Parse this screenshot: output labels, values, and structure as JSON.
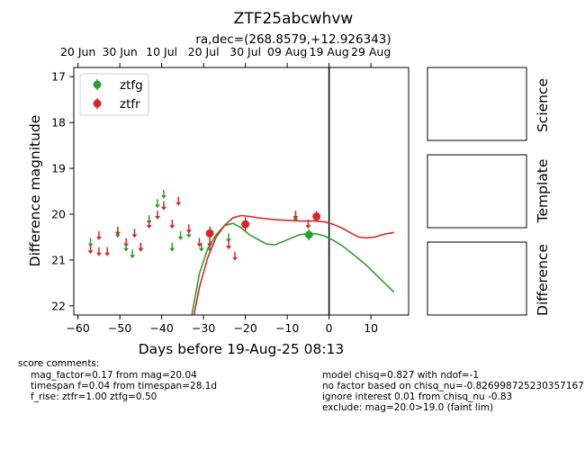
{
  "chart_data": {
    "type": "scatter",
    "title": "ZTF25abcwhvw",
    "subtitle": "ra,dec=(268.8579,+12.926343)",
    "xlabel": "Days before 19-Aug-25 08:13",
    "ylabel": "Difference magnitude",
    "xlim": [
      -61,
      19
    ],
    "ylim": [
      22.2,
      16.8
    ],
    "y_inverted": true,
    "x_ticks": [
      -60,
      -50,
      -40,
      -30,
      -20,
      -10,
      0,
      10
    ],
    "y_ticks": [
      17,
      18,
      19,
      20,
      21,
      22
    ],
    "top_ticks": [
      {
        "label": "20 Jun",
        "x": -60
      },
      {
        "label": "30 Jun",
        "x": -50
      },
      {
        "label": "10 Jul",
        "x": -40
      },
      {
        "label": "20 Jul",
        "x": -30
      },
      {
        "label": "30 Jul",
        "x": -20
      },
      {
        "label": "09 Aug",
        "x": -10
      },
      {
        "label": "19 Aug",
        "x": 0
      },
      {
        "label": "29 Aug",
        "x": 10
      }
    ],
    "legend": "top-left",
    "vline_x": 0,
    "series": [
      {
        "name": "ztfg",
        "color": "#2ca02c",
        "detections": [
          {
            "x": -4.8,
            "y": 20.45,
            "err": 0.12
          }
        ],
        "upper_limits": [
          {
            "x": -57,
            "y": 20.6
          },
          {
            "x": -50.5,
            "y": 20.4
          },
          {
            "x": -48.5,
            "y": 20.7
          },
          {
            "x": -47,
            "y": 20.85
          },
          {
            "x": -45,
            "y": 20.7
          },
          {
            "x": -43,
            "y": 20.1
          },
          {
            "x": -41,
            "y": 19.75
          },
          {
            "x": -39.5,
            "y": 19.55
          },
          {
            "x": -37.5,
            "y": 20.7
          },
          {
            "x": -35.5,
            "y": 20.45
          },
          {
            "x": -33.5,
            "y": 20.4
          },
          {
            "x": -30.5,
            "y": 20.7
          },
          {
            "x": -28.5,
            "y": 20.7
          },
          {
            "x": -24,
            "y": 20.5
          },
          {
            "x": -8,
            "y": 20.05
          }
        ],
        "model": [
          {
            "x": -33,
            "y": 22.3
          },
          {
            "x": -31,
            "y": 21.3
          },
          {
            "x": -29,
            "y": 20.75
          },
          {
            "x": -27,
            "y": 20.45
          },
          {
            "x": -25,
            "y": 20.25
          },
          {
            "x": -23,
            "y": 20.2
          },
          {
            "x": -21,
            "y": 20.3
          },
          {
            "x": -19,
            "y": 20.45
          },
          {
            "x": -17,
            "y": 20.55
          },
          {
            "x": -15,
            "y": 20.65
          },
          {
            "x": -13,
            "y": 20.67
          },
          {
            "x": -11,
            "y": 20.6
          },
          {
            "x": -9,
            "y": 20.52
          },
          {
            "x": -7,
            "y": 20.45
          },
          {
            "x": -5,
            "y": 20.42
          },
          {
            "x": -3,
            "y": 20.43
          },
          {
            "x": -1,
            "y": 20.48
          },
          {
            "x": 1,
            "y": 20.57
          },
          {
            "x": 3,
            "y": 20.68
          },
          {
            "x": 5,
            "y": 20.82
          },
          {
            "x": 7,
            "y": 20.97
          },
          {
            "x": 9,
            "y": 21.12
          },
          {
            "x": 11,
            "y": 21.3
          },
          {
            "x": 13,
            "y": 21.48
          },
          {
            "x": 15.5,
            "y": 21.7
          }
        ]
      },
      {
        "name": "ztfr",
        "color": "#d62728",
        "detections": [
          {
            "x": -28.5,
            "y": 20.42,
            "err": 0.15
          },
          {
            "x": -20,
            "y": 20.22,
            "err": 0.15
          },
          {
            "x": -3,
            "y": 20.05,
            "err": 0.12
          }
        ],
        "upper_limits": [
          {
            "x": -57,
            "y": 20.75
          },
          {
            "x": -55,
            "y": 20.45
          },
          {
            "x": -55,
            "y": 20.8
          },
          {
            "x": -53,
            "y": 20.8
          },
          {
            "x": -50.5,
            "y": 20.35
          },
          {
            "x": -48.5,
            "y": 20.6
          },
          {
            "x": -46.5,
            "y": 20.4
          },
          {
            "x": -45,
            "y": 20.7
          },
          {
            "x": -43,
            "y": 20.2
          },
          {
            "x": -41,
            "y": 20.0
          },
          {
            "x": -39.5,
            "y": 19.8
          },
          {
            "x": -37.5,
            "y": 20.2
          },
          {
            "x": -36,
            "y": 19.7
          },
          {
            "x": -33.5,
            "y": 20.3
          },
          {
            "x": -31,
            "y": 20.6
          },
          {
            "x": -28.5,
            "y": 20.6
          },
          {
            "x": -24,
            "y": 20.65
          },
          {
            "x": -22.5,
            "y": 20.9
          },
          {
            "x": -8,
            "y": 20.0
          },
          {
            "x": -5,
            "y": 20.2
          }
        ],
        "model": [
          {
            "x": -32.5,
            "y": 22.3
          },
          {
            "x": -31,
            "y": 21.6
          },
          {
            "x": -29,
            "y": 20.95
          },
          {
            "x": -27,
            "y": 20.5
          },
          {
            "x": -25,
            "y": 20.25
          },
          {
            "x": -23,
            "y": 20.08
          },
          {
            "x": -21,
            "y": 20.03
          },
          {
            "x": -19,
            "y": 20.05
          },
          {
            "x": -17,
            "y": 20.08
          },
          {
            "x": -15,
            "y": 20.1
          },
          {
            "x": -13,
            "y": 20.12
          },
          {
            "x": -11,
            "y": 20.13
          },
          {
            "x": -9,
            "y": 20.14
          },
          {
            "x": -7,
            "y": 20.15
          },
          {
            "x": -5,
            "y": 20.15
          },
          {
            "x": -3,
            "y": 20.15
          },
          {
            "x": -1,
            "y": 20.17
          },
          {
            "x": 1,
            "y": 20.22
          },
          {
            "x": 3,
            "y": 20.3
          },
          {
            "x": 5,
            "y": 20.4
          },
          {
            "x": 7,
            "y": 20.5
          },
          {
            "x": 9,
            "y": 20.52
          },
          {
            "x": 11,
            "y": 20.5
          },
          {
            "x": 13,
            "y": 20.44
          },
          {
            "x": 15.5,
            "y": 20.4
          }
        ]
      }
    ]
  },
  "panels": [
    "Science",
    "Template",
    "Difference"
  ],
  "comments": {
    "header": "score comments:",
    "left": [
      "mag_factor=0.17 from mag=20.04",
      "timespan f=0.04 from timespan=28.1d",
      "f_rise: ztfr=1.00 ztfg=0.50"
    ],
    "right": [
      "model chisq=0.827 with ndof=-1",
      "no factor based on chisq_nu=-0.826998725230357167",
      "ignore interest 0.01 from chisq_nu -0.83",
      "exclude: mag=20.0>19.0 (faint lim)"
    ]
  }
}
